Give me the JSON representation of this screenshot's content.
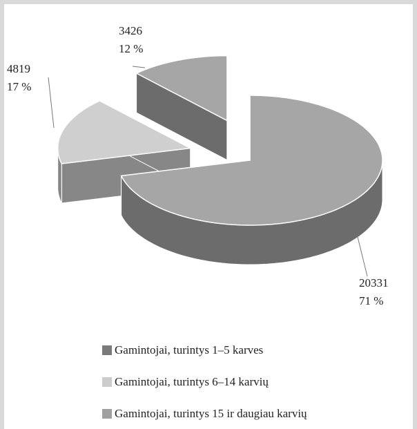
{
  "chart_data": {
    "type": "pie3d",
    "categories": [
      "Gamintojai, turintys 1–5 karves",
      "Gamintojai, turintys 6–14 karvių",
      "Gamintojai, turintys 15 ir daugiau karvių"
    ],
    "values": [
      20331,
      4819,
      3426
    ],
    "percent_labels": [
      "71 %",
      "17 %",
      "12 %"
    ],
    "colors": [
      "#a6a6a6",
      "#cfcfcf",
      "#a6a6a6"
    ],
    "legend_colors": [
      "#7a7a7a",
      "#cccccc",
      "#a0a0a0"
    ],
    "legend": "bottom"
  }
}
